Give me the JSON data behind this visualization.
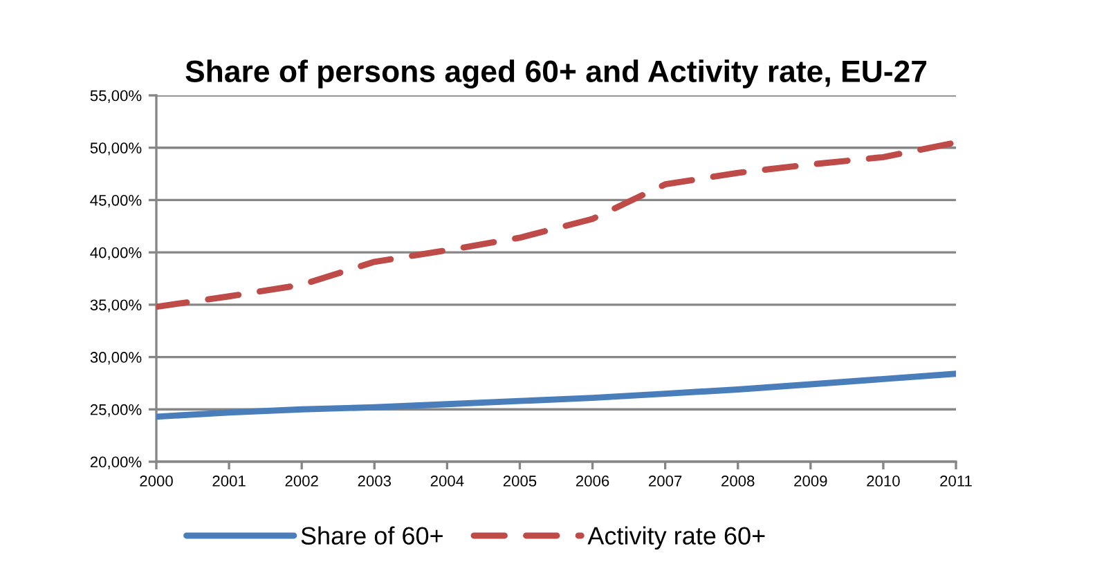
{
  "chart_data": {
    "type": "line",
    "title": "Share of persons aged 60+ and Activity rate, EU-27",
    "x": [
      2000,
      2001,
      2002,
      2003,
      2004,
      2005,
      2006,
      2007,
      2008,
      2009,
      2010,
      2011
    ],
    "series": [
      {
        "name": "Share of 60+",
        "color": "#4a7ebb",
        "line_style": "solid",
        "values": [
          24.3,
          24.7,
          25.0,
          25.2,
          25.5,
          25.8,
          26.1,
          26.5,
          26.9,
          27.4,
          27.9,
          28.4
        ]
      },
      {
        "name": "Activity rate 60+",
        "color": "#be4b48",
        "line_style": "dashed",
        "values": [
          34.8,
          35.8,
          36.9,
          39.1,
          40.2,
          41.4,
          43.2,
          46.5,
          47.6,
          48.4,
          49.1,
          50.5
        ]
      }
    ],
    "xlim": [
      2000,
      2011
    ],
    "xticks": [
      2000,
      2001,
      2002,
      2003,
      2004,
      2005,
      2006,
      2007,
      2008,
      2009,
      2010,
      2011
    ],
    "ylim": [
      20,
      55
    ],
    "yticks": [
      {
        "value": 20,
        "label": "20,00%"
      },
      {
        "value": 25,
        "label": "25,00%"
      },
      {
        "value": 30,
        "label": "30,00%"
      },
      {
        "value": 35,
        "label": "35,00%"
      },
      {
        "value": 40,
        "label": "40,00%"
      },
      {
        "value": 45,
        "label": "45,00%"
      },
      {
        "value": 50,
        "label": "50,00%"
      },
      {
        "value": 55,
        "label": "55,00%"
      }
    ],
    "grid": "y",
    "legend": "bottom",
    "marker": "none"
  }
}
